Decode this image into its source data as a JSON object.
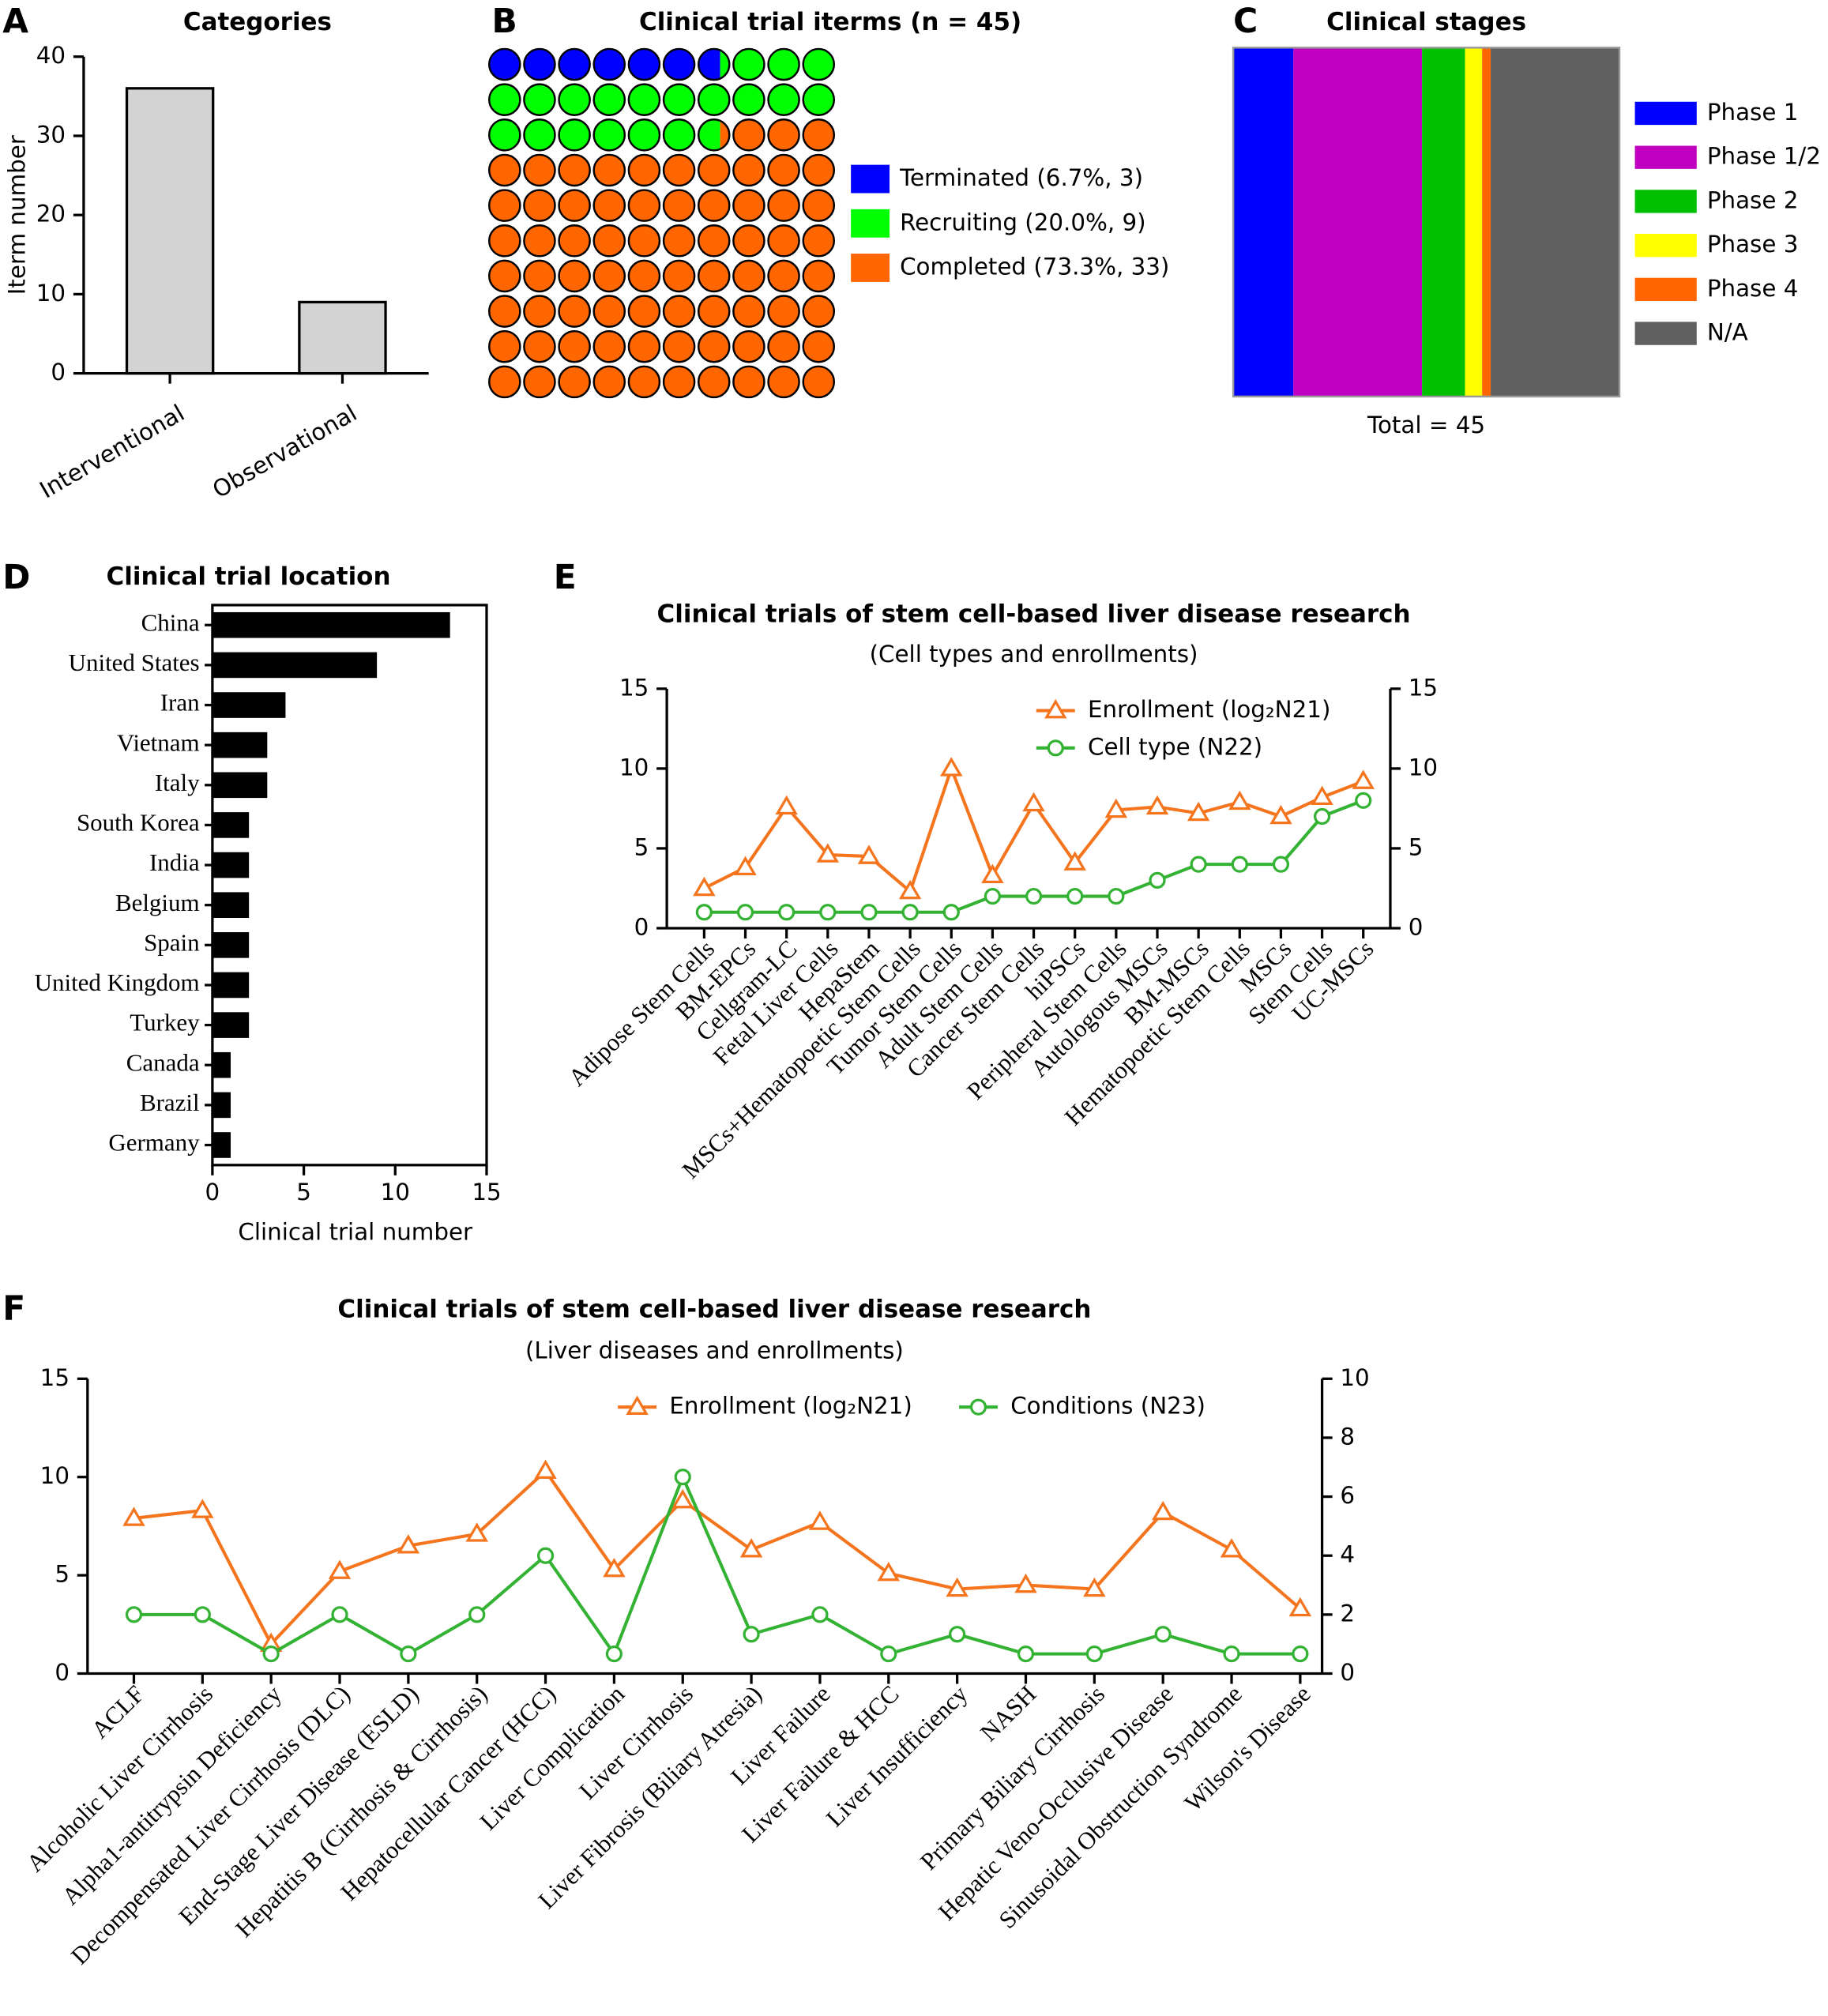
{
  "chart_data": [
    {
      "panel_label": "A",
      "type": "bar",
      "title": "Categories",
      "y_label": "Iterm number",
      "categories": [
        "Interventional",
        "Observational"
      ],
      "values": [
        36,
        9
      ],
      "color": "#d3d3d3",
      "ylim": [
        0,
        40
      ],
      "yticks": [
        0,
        10,
        20,
        30,
        40
      ]
    },
    {
      "panel_label": "B",
      "type": "waffle",
      "title": "Clinical trial iterms (n = 45)",
      "series": [
        {
          "name": "Terminated (6.7%, 3)",
          "color": "#0000ff",
          "value": 6.7
        },
        {
          "name": "Recruiting (20.0%, 9)",
          "color": "#00ff00",
          "value": 20.0
        },
        {
          "name": "Completed (73.3%, 33)",
          "color": "#ff6600",
          "value": 73.3
        }
      ]
    },
    {
      "panel_label": "C",
      "type": "stacked_bar",
      "title": "Clinical stages",
      "x_label": "Total = 45",
      "series": [
        {
          "name": "Phase 1",
          "color": "#0000ff",
          "value": 7
        },
        {
          "name": "Phase 1/2",
          "color": "#c000c0",
          "value": 15
        },
        {
          "name": "Phase 2",
          "color": "#00c000",
          "value": 5
        },
        {
          "name": "Phase 3",
          "color": "#ffff00",
          "value": 2
        },
        {
          "name": "Phase 4",
          "color": "#ff6600",
          "value": 1
        },
        {
          "name": "N/A",
          "color": "#606060",
          "value": 15
        }
      ]
    },
    {
      "panel_label": "D",
      "type": "hbar",
      "title": "Clinical trial location",
      "x_label": "Clinical trial number",
      "categories": [
        "China",
        "United States",
        "Iran",
        "Vietnam",
        "Italy",
        "South Korea",
        "India",
        "Belgium",
        "Spain",
        "United Kingdom",
        "Turkey",
        "Canada",
        "Brazil",
        "Germany"
      ],
      "values": [
        13,
        9,
        4,
        3,
        3,
        2,
        2,
        2,
        2,
        2,
        2,
        1,
        1,
        1
      ],
      "color": "#000000",
      "xlim": [
        0,
        15
      ],
      "xticks": [
        0,
        5,
        10,
        15
      ]
    },
    {
      "panel_label": "E",
      "type": "line",
      "title": "Clinical trials of stem cell-based liver disease research",
      "subtitle": "(Cell types and enrollments)",
      "categories": [
        "Adipose Stem Cells",
        "BM-EPCs",
        "Cellgram-LC",
        "Fetal Liver Cells",
        "HepaStem",
        "MSCs+Hematopoetic Stem Cells",
        "Tumor Stem Cells",
        "Adult Stem Cells",
        "Cancer Stem Cells",
        "hiPSCs",
        "Peripheral Stem Cells",
        "Autologous MSCs",
        "BM-MSCs",
        "Hematopoetic Stem Cells",
        "MSCs",
        "Stem Cells",
        "UC-MSCs"
      ],
      "series": [
        {
          "name": "Enrollment (log₂N21)",
          "color": "#f5751f",
          "marker": "triangle",
          "values": [
            2.5,
            3.8,
            7.6,
            4.6,
            4.5,
            2.3,
            10,
            3.3,
            7.8,
            4.1,
            7.4,
            7.6,
            7.2,
            7.9,
            7.0,
            8.2,
            9.2
          ]
        },
        {
          "name": "Cell type (N22)",
          "color": "#33b233",
          "marker": "circle",
          "values": [
            1,
            1,
            1,
            1,
            1,
            1,
            1,
            2,
            2,
            2,
            2,
            3,
            4,
            4,
            4,
            7,
            8
          ]
        }
      ],
      "ylim": [
        0,
        15
      ],
      "yticks": [
        0,
        5,
        10,
        15
      ],
      "y2lim": [
        0,
        15
      ],
      "y2ticks": [
        0,
        5,
        10,
        15
      ],
      "legend": "upper right"
    },
    {
      "panel_label": "F",
      "type": "line",
      "title": "Clinical trials of stem cell-based liver disease research",
      "subtitle": "(Liver diseases and enrollments)",
      "categories": [
        "ACLF",
        "Alcoholic Liver Cirrhosis",
        "Alpha1-antitrypsin Deficiency",
        "Decompensated Liver Cirrhosis (DLC)",
        "End-Stage Liver Disease (ESLD)",
        "Hepatitis B (Cirrhosis & Cirrhosis)",
        "Hepatocellular Cancer (HCC)",
        "Liver Complication",
        "Liver Cirrhosis",
        "Liver Fibrosis (Biliary Atresia)",
        "Liver Failure",
        "Liver Failure & HCC",
        "Liver Insufficiency",
        "NASH",
        "Primary Biliary Cirrhosis",
        "Hepatic Veno-Occlusive Disease",
        "Sinusoidal Obstruction Syndrome",
        "Wilson's Disease"
      ],
      "series": [
        {
          "name": "Enrollment (log₂N21)",
          "color": "#f5751f",
          "marker": "triangle",
          "values": [
            7.9,
            8.3,
            1.5,
            5.2,
            6.5,
            7.1,
            10.3,
            5.3,
            8.8,
            6.3,
            7.7,
            5.1,
            4.3,
            4.5,
            4.3,
            8.2,
            6.3,
            3.3
          ]
        },
        {
          "name": "Conditions (N23)",
          "color": "#33b233",
          "marker": "circle",
          "values": [
            3,
            3,
            1,
            3,
            1,
            3,
            6,
            1,
            10,
            2,
            3,
            1,
            2,
            1,
            1,
            2,
            1,
            1
          ]
        }
      ],
      "ylim": [
        0,
        15
      ],
      "yticks": [
        0,
        5,
        10,
        15
      ],
      "y2lim": [
        0,
        10
      ],
      "y2ticks": [
        0,
        2,
        4,
        6,
        8,
        10
      ],
      "legend": "upper center"
    }
  ]
}
